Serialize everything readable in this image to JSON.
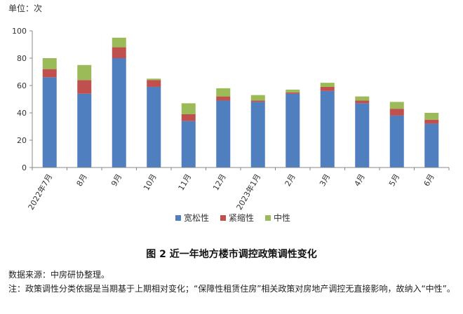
{
  "chart_data": {
    "type": "bar",
    "stacked": true,
    "unit_label": "单位：次",
    "categories": [
      "2022年7月",
      "8月",
      "9月",
      "10月",
      "11月",
      "12月",
      "2023年1月",
      "2月",
      "3月",
      "4月",
      "5月",
      "6月"
    ],
    "series": [
      {
        "name": "宽松性",
        "color": "#4f7fbf",
        "values": [
          66,
          54,
          80,
          59,
          34,
          49,
          48,
          54,
          56,
          47,
          38,
          32
        ]
      },
      {
        "name": "紧缩性",
        "color": "#c0504d",
        "values": [
          6,
          10,
          8,
          5,
          5,
          3,
          1,
          1,
          3,
          2,
          5,
          3
        ]
      },
      {
        "name": "中性",
        "color": "#9bbb59",
        "values": [
          8,
          11,
          7,
          1,
          8,
          6,
          4,
          2,
          3,
          3,
          5,
          5
        ]
      }
    ],
    "ylim": [
      0,
      100
    ],
    "yticks": [
      0,
      20,
      40,
      60,
      80,
      100
    ],
    "grid": false,
    "legend_position": "bottom"
  },
  "caption": "图 2  近一年地方楼市调控政策调性变化",
  "notes": {
    "source": "数据来源：中房研协整理。",
    "remark": "注：政策调性分类依据是当期基于上期相对变化；“保障性租赁住房”相关政策对房地产调控无直接影响，故纳入“中性”。"
  }
}
